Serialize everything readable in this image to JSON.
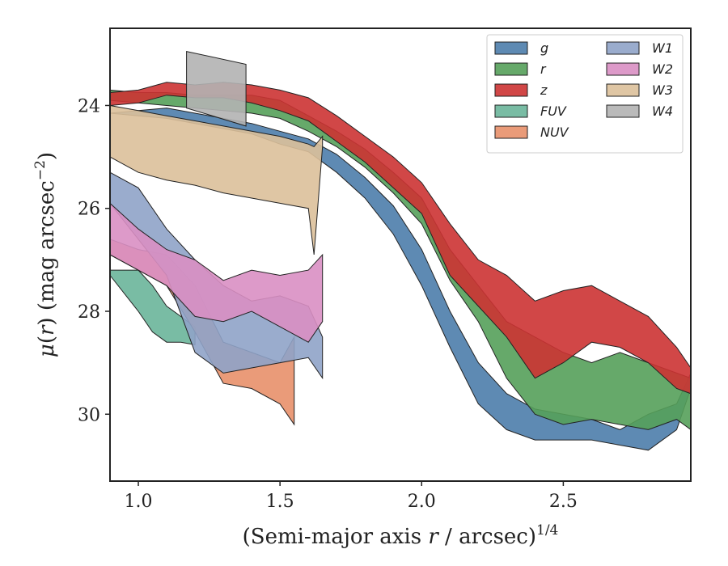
{
  "chart_data": {
    "type": "area",
    "title": "",
    "xlabel": "(Semi-major axis r / arcsec)",
    "xlabel_parts": {
      "prefix": "(Semi-major axis ",
      "var": "r",
      "suffix": " / arcsec)",
      "sup": "1/4"
    },
    "ylabel": "μ(r) (mag arcsec−2)",
    "ylabel_parts": {
      "mu": "μ",
      "open": "(",
      "var": "r",
      "rest": ") (mag arcsec",
      "sup": "−2",
      "close": ")"
    },
    "xlim": [
      0.9,
      2.95
    ],
    "ylim": [
      22.5,
      31.3
    ],
    "y_inverted": true,
    "xticks": [
      1.0,
      1.5,
      2.0,
      2.5
    ],
    "xtick_labels": [
      "1.0",
      "1.5",
      "2.0",
      "2.5"
    ],
    "yticks": [
      24,
      26,
      28,
      30
    ],
    "ytick_labels": [
      "24",
      "26",
      "28",
      "30"
    ],
    "legend": {
      "placement": "top-right",
      "columns": 2
    },
    "series": [
      {
        "name": "g",
        "color": "#4c7dab",
        "x": [
          0.9,
          1.0,
          1.1,
          1.2,
          1.3,
          1.4,
          1.5,
          1.6,
          1.7,
          1.8,
          1.9,
          2.0,
          2.1,
          2.2,
          2.3,
          2.4,
          2.5,
          2.6,
          2.7,
          2.8,
          2.9,
          2.95
        ],
        "lower": [
          24.15,
          24.1,
          24.05,
          24.15,
          24.25,
          24.35,
          24.5,
          24.65,
          24.95,
          25.4,
          25.95,
          26.8,
          28.0,
          29.0,
          29.6,
          29.9,
          30.0,
          30.1,
          30.3,
          30.0,
          29.8,
          29.2
        ],
        "upper": [
          24.15,
          24.2,
          24.25,
          24.35,
          24.45,
          24.55,
          24.75,
          24.9,
          25.3,
          25.8,
          26.5,
          27.5,
          28.7,
          29.8,
          30.3,
          30.5,
          30.5,
          30.5,
          30.6,
          30.7,
          30.3,
          29.5
        ]
      },
      {
        "name": "r",
        "color": "#55a05a",
        "x": [
          0.9,
          1.0,
          1.1,
          1.2,
          1.3,
          1.4,
          1.5,
          1.6,
          1.7,
          1.8,
          1.9,
          2.0,
          2.1,
          2.2,
          2.3,
          2.4,
          2.5,
          2.6,
          2.7,
          2.8,
          2.9,
          2.95
        ],
        "lower": [
          23.7,
          23.75,
          23.75,
          23.8,
          23.8,
          23.8,
          23.9,
          24.2,
          24.5,
          24.85,
          25.3,
          25.8,
          26.8,
          27.5,
          28.2,
          28.5,
          28.8,
          29.0,
          28.8,
          29.0,
          29.2,
          29.3
        ],
        "upper": [
          23.9,
          23.95,
          24.0,
          24.05,
          24.1,
          24.15,
          24.25,
          24.5,
          24.8,
          25.2,
          25.7,
          26.3,
          27.4,
          28.2,
          29.3,
          30.0,
          30.2,
          30.1,
          30.2,
          30.3,
          30.1,
          30.3
        ]
      },
      {
        "name": "z",
        "color": "#cc3333",
        "x": [
          0.9,
          1.0,
          1.1,
          1.2,
          1.3,
          1.4,
          1.5,
          1.6,
          1.7,
          1.8,
          1.9,
          2.0,
          2.1,
          2.2,
          2.3,
          2.4,
          2.5,
          2.6,
          2.7,
          2.8,
          2.9,
          2.95
        ],
        "lower": [
          23.75,
          23.7,
          23.55,
          23.6,
          23.55,
          23.6,
          23.7,
          23.85,
          24.2,
          24.6,
          25.0,
          25.5,
          26.3,
          27.0,
          27.3,
          27.8,
          27.6,
          27.5,
          27.8,
          28.1,
          28.7,
          29.1
        ],
        "upper": [
          24.0,
          23.95,
          23.8,
          23.85,
          23.85,
          23.95,
          24.1,
          24.3,
          24.7,
          25.1,
          25.6,
          26.1,
          27.3,
          27.9,
          28.5,
          29.3,
          29.0,
          28.6,
          28.7,
          29.0,
          29.5,
          29.6
        ]
      },
      {
        "name": "FUV",
        "color": "#6ab59a",
        "x": [
          0.9,
          1.0,
          1.05,
          1.1,
          1.15,
          1.2
        ],
        "lower": [
          27.2,
          27.2,
          27.5,
          27.9,
          28.1,
          28.3
        ],
        "upper": [
          27.3,
          28.0,
          28.4,
          28.6,
          28.6,
          28.65
        ]
      },
      {
        "name": "NUV",
        "color": "#e8906a",
        "x": [
          0.9,
          1.0,
          1.1,
          1.2,
          1.3,
          1.4,
          1.5,
          1.55
        ],
        "lower": [
          26.6,
          26.8,
          26.9,
          27.5,
          28.6,
          28.8,
          29.0,
          28.5
        ],
        "upper": [
          26.9,
          27.2,
          27.5,
          28.4,
          29.4,
          29.5,
          29.8,
          30.2
        ]
      },
      {
        "name": "W1",
        "color": "#8fa3c8",
        "x": [
          0.9,
          1.0,
          1.1,
          1.2,
          1.3,
          1.4,
          1.5,
          1.6,
          1.65
        ],
        "lower": [
          25.3,
          25.6,
          26.4,
          27.0,
          27.5,
          27.8,
          27.7,
          27.9,
          28.5
        ],
        "upper": [
          25.9,
          26.6,
          27.3,
          28.8,
          29.2,
          29.1,
          29.0,
          28.9,
          29.3
        ]
      },
      {
        "name": "W2",
        "color": "#d98fc3",
        "x": [
          0.9,
          1.0,
          1.1,
          1.2,
          1.3,
          1.4,
          1.5,
          1.6,
          1.65
        ],
        "lower": [
          25.9,
          26.4,
          26.8,
          27.0,
          27.4,
          27.2,
          27.3,
          27.2,
          26.9
        ],
        "upper": [
          26.9,
          27.2,
          27.5,
          28.1,
          28.2,
          28.0,
          28.3,
          28.6,
          28.2
        ]
      },
      {
        "name": "W3",
        "color": "#dcc09a",
        "x": [
          0.9,
          1.0,
          1.1,
          1.2,
          1.3,
          1.4,
          1.5,
          1.6,
          1.62,
          1.65
        ],
        "lower": [
          24.0,
          24.1,
          24.2,
          24.3,
          24.4,
          24.5,
          24.6,
          24.75,
          24.8,
          24.6
        ],
        "upper": [
          25.0,
          25.3,
          25.45,
          25.55,
          25.7,
          25.8,
          25.9,
          26.0,
          26.9,
          24.8
        ]
      },
      {
        "name": "W4",
        "color": "#b2b2b2",
        "x": [
          1.17,
          1.38
        ],
        "lower": [
          22.95,
          23.2
        ],
        "upper": [
          24.05,
          24.4
        ]
      }
    ]
  }
}
